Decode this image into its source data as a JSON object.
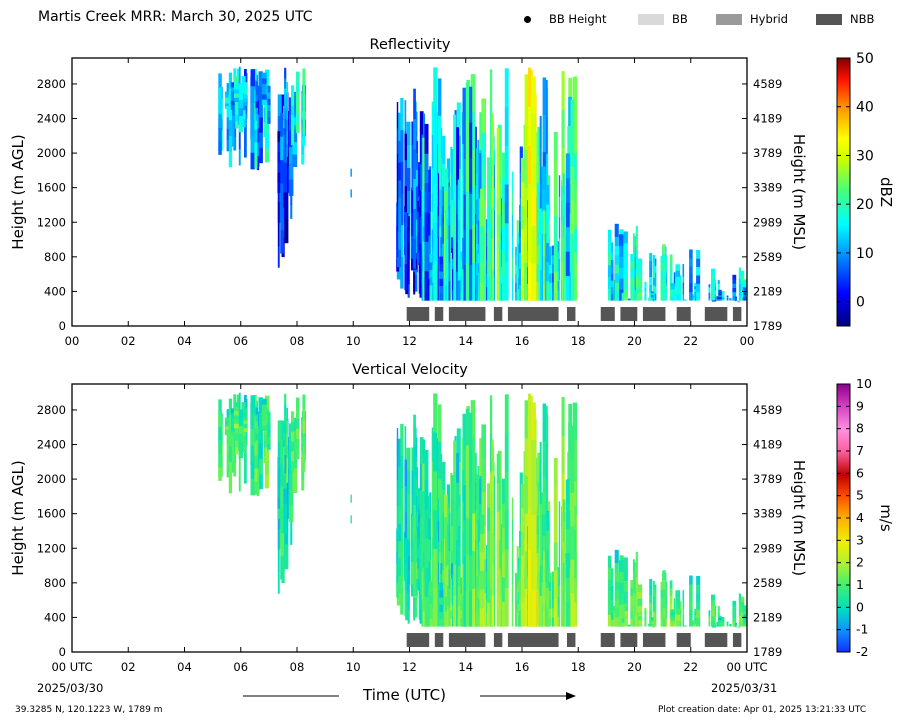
{
  "header": {
    "title": "Martis Creek MRR:  March 30, 2025 UTC",
    "legend": [
      {
        "label": "BB Height",
        "kind": "dot",
        "color": "#000000"
      },
      {
        "label": "BB",
        "kind": "box",
        "color": "#d9d9d9"
      },
      {
        "label": "Hybrid",
        "kind": "box",
        "color": "#9a9a9a"
      },
      {
        "label": "NBB",
        "kind": "box",
        "color": "#555555"
      }
    ]
  },
  "footer": {
    "location": "39.3285 N, 120.1223 W, 1789 m",
    "created": "Plot creation date: Apr 01, 2025 13:21:33 UTC",
    "xlabel": "Time (UTC)",
    "start_date": "2025/03/30",
    "end_date": "2025/03/31"
  },
  "chart_data": [
    {
      "type": "heatmap",
      "title": "Reflectivity",
      "ylabel": "Height (m AGL)",
      "ylabel_right": "Height (m MSL)",
      "colorbar_label": "dBZ",
      "colorbar_ticks": [
        0,
        10,
        20,
        30,
        40,
        50
      ],
      "colorbar_range": [
        -5,
        50
      ],
      "xlim": [
        0,
        24
      ],
      "ylim": [
        0,
        3100
      ],
      "x_ticks": [
        "00",
        "02",
        "04",
        "06",
        "08",
        "10",
        "12",
        "14",
        "16",
        "18",
        "20",
        "22",
        "00"
      ],
      "y_ticks": [
        0,
        400,
        800,
        1200,
        1600,
        2000,
        2400,
        2800
      ],
      "y_ticks_right": [
        "1789",
        "2189",
        "2589",
        "2989",
        "3389",
        "3789",
        "4189",
        "4589"
      ],
      "bb_type_bars": [
        [
          11.9,
          12.7
        ],
        [
          12.9,
          13.2
        ],
        [
          13.4,
          14.7
        ],
        [
          15.0,
          15.3
        ],
        [
          15.5,
          17.3
        ],
        [
          17.6,
          17.9
        ],
        [
          18.8,
          19.3
        ],
        [
          19.5,
          20.1
        ],
        [
          20.3,
          21.1
        ],
        [
          21.5,
          22.0
        ],
        [
          22.5,
          23.3
        ],
        [
          23.5,
          23.8
        ]
      ]
    },
    {
      "type": "heatmap",
      "title": "Vertical Velocity",
      "ylabel": "Height (m AGL)",
      "ylabel_right": "Height (m MSL)",
      "colorbar_label": "m/s",
      "colorbar_ticks": [
        -2,
        -1,
        0,
        1,
        2,
        3,
        4,
        5,
        6,
        7,
        8,
        9,
        10
      ],
      "colorbar_range": [
        -2,
        10
      ],
      "xlim": [
        0,
        24
      ],
      "ylim": [
        0,
        3100
      ],
      "x_ticks": [
        "00 UTC",
        "02",
        "04",
        "06",
        "08",
        "10",
        "12",
        "14",
        "16",
        "18",
        "20",
        "22",
        "00 UTC"
      ],
      "y_ticks": [
        0,
        400,
        800,
        1200,
        1600,
        2000,
        2400,
        2800
      ],
      "y_ticks_right": [
        "1789",
        "2189",
        "2589",
        "2989",
        "3389",
        "3789",
        "4189",
        "4589"
      ],
      "bb_type_bars": [
        [
          11.9,
          12.7
        ],
        [
          12.9,
          13.2
        ],
        [
          13.4,
          14.7
        ],
        [
          15.0,
          15.3
        ],
        [
          15.5,
          17.3
        ],
        [
          17.6,
          17.9
        ],
        [
          18.8,
          19.3
        ],
        [
          19.5,
          20.1
        ],
        [
          20.3,
          21.1
        ],
        [
          21.5,
          22.0
        ],
        [
          22.5,
          23.3
        ],
        [
          23.5,
          23.8
        ]
      ]
    }
  ]
}
